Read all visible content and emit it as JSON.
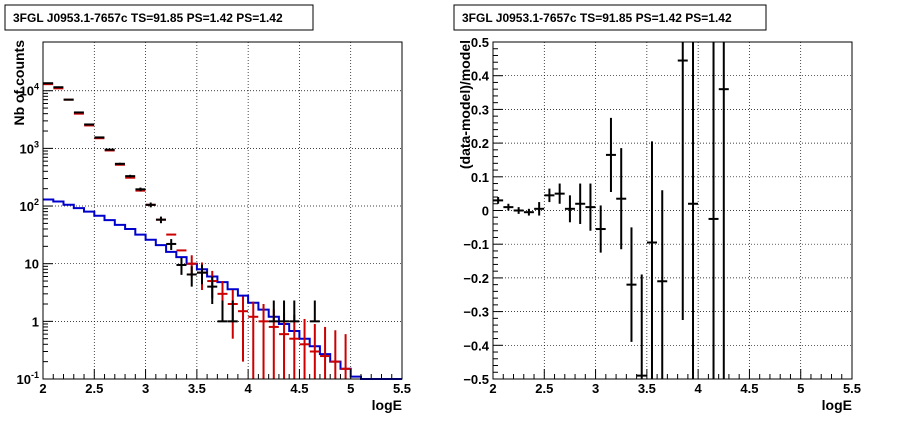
{
  "colors": {
    "data": "#000000",
    "model": "#cc0000",
    "background": "#0000cc",
    "grid": "#000000"
  },
  "chart_data": [
    {
      "type": "scatter",
      "title": "3FGL J0953.1-7657c TS=91.85 PS=1.42 PS=1.42",
      "xlabel": "logE",
      "ylabel": "Nb of counts",
      "xlim": [
        2,
        5.5
      ],
      "ylim": [
        0.1,
        70000
      ],
      "yscale": "log",
      "grid": true,
      "x_ticks": [
        "2",
        "2.5",
        "3",
        "3.5",
        "4",
        "4.5",
        "5",
        "5.5"
      ],
      "y_ticks": [
        "10^-1",
        "1",
        "10",
        "10^2",
        "10^3",
        "10^4"
      ],
      "series": [
        {
          "role": "data",
          "style": "errorbar",
          "x": [
            2.05,
            2.15,
            2.25,
            2.35,
            2.45,
            2.55,
            2.65,
            2.75,
            2.85,
            2.95,
            3.05,
            3.15,
            3.25,
            3.35,
            3.45,
            3.55,
            3.65,
            3.75,
            3.85,
            4.25,
            4.35,
            4.45,
            4.65
          ],
          "y": [
            13500,
            11500,
            7000,
            4200,
            2600,
            1550,
            950,
            540,
            330,
            195,
            105,
            58,
            22,
            9.5,
            6.5,
            7,
            4,
            1,
            1,
            1,
            1,
            1,
            1
          ],
          "yerr_lo": [
            120,
            110,
            80,
            60,
            50,
            40,
            30,
            23,
            18,
            14,
            10,
            7.6,
            4.7,
            3.1,
            2.5,
            2.6,
            2,
            0,
            0,
            0,
            0,
            0,
            0
          ],
          "yerr_hi": [
            120,
            110,
            80,
            60,
            50,
            40,
            30,
            23,
            18,
            14,
            10,
            7.6,
            4.7,
            3.1,
            2.5,
            2.6,
            2,
            1.3,
            1.3,
            1.3,
            1.3,
            1.3,
            1.3
          ]
        },
        {
          "role": "model",
          "style": "errorbar",
          "x": [
            2.05,
            2.15,
            2.25,
            2.35,
            2.45,
            2.55,
            2.65,
            2.75,
            2.85,
            2.95,
            3.05,
            3.15,
            3.25,
            3.35,
            3.45,
            3.55,
            3.65,
            3.75,
            3.85,
            3.95,
            4.05,
            4.15,
            4.25,
            4.35,
            4.45,
            4.55,
            4.65,
            4.75,
            4.85,
            4.95
          ],
          "y": [
            13000,
            11000,
            7000,
            4000,
            2500,
            1500,
            920,
            520,
            310,
            185,
            105,
            58,
            32,
            17,
            10,
            7,
            5,
            3,
            2,
            1.5,
            1.2,
            1,
            0.8,
            0.6,
            0.5,
            0.4,
            0.3,
            0.25,
            0.2,
            0.15
          ],
          "yerr_lo": [
            0,
            0,
            0,
            0,
            0,
            0,
            0,
            0,
            0,
            0,
            0,
            0,
            0,
            0,
            4,
            3.5,
            2.5,
            2,
            1.5,
            1.3,
            1.1,
            0.95,
            0.75,
            0.55,
            0.48,
            0.39,
            0.29,
            0.24,
            0.19,
            0.14
          ],
          "yerr_hi": [
            0,
            0,
            0,
            0,
            0,
            0,
            0,
            0,
            0,
            0,
            0,
            0,
            0,
            0,
            4,
            3.5,
            2.5,
            2,
            1.5,
            1.2,
            1,
            1,
            0.8,
            0.8,
            0.8,
            0.7,
            0.6,
            0.55,
            0.5,
            0.45
          ]
        },
        {
          "role": "background",
          "style": "step",
          "edges": [
            2.0,
            2.1,
            2.2,
            2.3,
            2.4,
            2.5,
            2.6,
            2.7,
            2.8,
            2.9,
            3.0,
            3.1,
            3.2,
            3.3,
            3.4,
            3.5,
            3.6,
            3.7,
            3.8,
            3.9,
            4.0,
            4.1,
            4.2,
            4.3,
            4.4,
            4.5,
            4.6,
            4.7,
            4.8,
            4.9,
            5.0,
            5.1,
            5.2,
            5.3,
            5.4,
            5.5
          ],
          "values": [
            130,
            120,
            105,
            92,
            80,
            68,
            57,
            47,
            40,
            32,
            26,
            21,
            16,
            13,
            10,
            8,
            6,
            4.8,
            3.6,
            2.8,
            2.1,
            1.6,
            1.2,
            0.9,
            0.68,
            0.5,
            0.37,
            0.27,
            0.2,
            0.15,
            0.11,
            0.1,
            0.1,
            0.1,
            0.1
          ]
        }
      ]
    },
    {
      "type": "scatter",
      "title": "3FGL J0953.1-7657c TS=91.85 PS=1.42 PS=1.42",
      "xlabel": "logE",
      "ylabel": "(data-model)/model",
      "xlim": [
        2,
        5.5
      ],
      "ylim": [
        -0.5,
        0.5
      ],
      "yscale": "linear",
      "grid": true,
      "x_ticks": [
        "2",
        "2.5",
        "3",
        "3.5",
        "4",
        "4.5",
        "5",
        "5.5"
      ],
      "y_ticks": [
        "−0.5",
        "−0.4",
        "−0.3",
        "−0.2",
        "−0.1",
        "0",
        "0.1",
        "0.2",
        "0.3",
        "0.4",
        "0.5"
      ],
      "series": [
        {
          "role": "residual",
          "style": "errorbar",
          "x": [
            2.05,
            2.15,
            2.25,
            2.35,
            2.45,
            2.55,
            2.65,
            2.75,
            2.85,
            2.95,
            3.05,
            3.15,
            3.25,
            3.35,
            3.45,
            3.55,
            3.65,
            3.85,
            3.95,
            4.15,
            4.25
          ],
          "y": [
            0.03,
            0.01,
            0.0,
            -0.005,
            0.005,
            0.045,
            0.05,
            0.005,
            0.02,
            0.01,
            -0.055,
            0.165,
            0.035,
            -0.22,
            -0.49,
            -0.095,
            -0.21,
            0.445,
            0.02,
            -0.025,
            0.36
          ],
          "yerr_lo": [
            0.01,
            0.01,
            0.01,
            0.01,
            0.02,
            0.02,
            0.03,
            0.04,
            0.06,
            0.07,
            0.07,
            0.11,
            0.15,
            0.17,
            0.3,
            0.45,
            0.4,
            0.77,
            0.55,
            0.52,
            0.9
          ],
          "yerr_hi": [
            0.01,
            0.01,
            0.01,
            0.01,
            0.02,
            0.02,
            0.03,
            0.04,
            0.06,
            0.07,
            0.07,
            0.11,
            0.15,
            0.17,
            0.3,
            0.3,
            0.27,
            0.2,
            0.55,
            0.6,
            0.2
          ]
        }
      ]
    }
  ]
}
